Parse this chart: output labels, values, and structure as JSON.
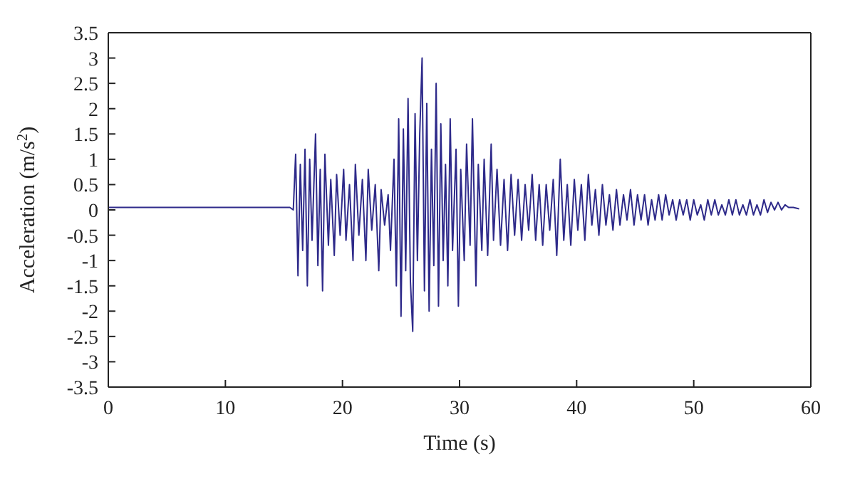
{
  "chart_data": {
    "type": "line",
    "xlabel": "Time (s)",
    "ylabel": "Acceleration (m/s$^{2}$)",
    "x": [
      0,
      15.5,
      15.8,
      16.0,
      16.2,
      16.4,
      16.6,
      16.8,
      17.0,
      17.2,
      17.4,
      17.7,
      17.9,
      18.1,
      18.3,
      18.5,
      18.8,
      19.0,
      19.3,
      19.5,
      19.8,
      20.1,
      20.3,
      20.6,
      20.9,
      21.1,
      21.4,
      21.7,
      22.0,
      22.2,
      22.5,
      22.8,
      23.1,
      23.3,
      23.6,
      23.9,
      24.1,
      24.4,
      24.6,
      24.8,
      25.0,
      25.2,
      25.4,
      25.6,
      25.8,
      26.0,
      26.2,
      26.4,
      26.6,
      26.8,
      27.0,
      27.2,
      27.4,
      27.6,
      27.8,
      28.0,
      28.2,
      28.4,
      28.6,
      28.8,
      29.0,
      29.2,
      29.4,
      29.7,
      29.9,
      30.1,
      30.4,
      30.6,
      30.9,
      31.1,
      31.4,
      31.6,
      31.9,
      32.1,
      32.4,
      32.7,
      32.9,
      33.2,
      33.5,
      33.8,
      34.1,
      34.4,
      34.7,
      35.0,
      35.3,
      35.6,
      35.9,
      36.2,
      36.5,
      36.8,
      37.1,
      37.4,
      37.7,
      38.0,
      38.3,
      38.6,
      38.9,
      39.2,
      39.5,
      39.8,
      40.1,
      40.4,
      40.7,
      41.0,
      41.3,
      41.6,
      41.9,
      42.2,
      42.5,
      42.8,
      43.1,
      43.4,
      43.7,
      44.0,
      44.3,
      44.6,
      44.9,
      45.2,
      45.5,
      45.8,
      46.1,
      46.4,
      46.7,
      47.0,
      47.3,
      47.6,
      47.9,
      48.2,
      48.5,
      48.8,
      49.1,
      49.4,
      49.7,
      50.0,
      50.3,
      50.6,
      50.9,
      51.2,
      51.5,
      51.8,
      52.1,
      52.4,
      52.7,
      53.0,
      53.3,
      53.6,
      53.9,
      54.2,
      54.5,
      54.8,
      55.1,
      55.4,
      55.7,
      56.0,
      56.3,
      56.6,
      56.9,
      57.2,
      57.5,
      57.8,
      58.1,
      58.5,
      59
    ],
    "series": [
      {
        "color": "#2e2a8a",
        "values": [
          0.05,
          0.05,
          0.0,
          1.1,
          -1.3,
          0.9,
          -0.8,
          1.2,
          -1.5,
          1.0,
          -0.6,
          1.5,
          -1.1,
          0.8,
          -1.6,
          1.1,
          -0.7,
          0.6,
          -0.9,
          0.7,
          -0.5,
          0.8,
          -0.6,
          0.5,
          -1.0,
          0.9,
          -0.5,
          0.6,
          -1.0,
          0.8,
          -0.4,
          0.5,
          -1.2,
          0.4,
          -0.3,
          0.3,
          -0.8,
          1.0,
          -1.5,
          1.8,
          -2.1,
          1.6,
          -1.2,
          2.2,
          -1.4,
          -2.4,
          1.9,
          -1.0,
          1.5,
          3.0,
          -1.6,
          2.1,
          -2.0,
          1.2,
          -1.1,
          2.5,
          -1.9,
          1.7,
          -1.0,
          0.9,
          -1.5,
          1.8,
          -0.8,
          1.2,
          -1.9,
          0.8,
          -1.0,
          1.3,
          -0.7,
          1.8,
          -1.5,
          0.9,
          -0.8,
          1.0,
          -0.9,
          1.3,
          -0.6,
          0.8,
          -0.7,
          0.6,
          -0.8,
          0.7,
          -0.5,
          0.6,
          -0.6,
          0.5,
          -0.4,
          0.7,
          -0.6,
          0.5,
          -0.7,
          0.5,
          -0.4,
          0.6,
          -0.9,
          1.0,
          -0.6,
          0.5,
          -0.7,
          0.6,
          -0.4,
          0.5,
          -0.6,
          0.7,
          -0.3,
          0.4,
          -0.5,
          0.5,
          -0.3,
          0.3,
          -0.4,
          0.4,
          -0.3,
          0.3,
          -0.2,
          0.4,
          -0.3,
          0.3,
          -0.2,
          0.3,
          -0.3,
          0.2,
          -0.2,
          0.3,
          -0.2,
          0.3,
          -0.1,
          0.2,
          -0.2,
          0.2,
          -0.1,
          0.2,
          -0.2,
          0.2,
          -0.1,
          0.1,
          -0.2,
          0.2,
          -0.1,
          0.2,
          -0.1,
          0.1,
          -0.1,
          0.2,
          -0.1,
          0.2,
          -0.1,
          0.1,
          -0.1,
          0.2,
          -0.1,
          0.1,
          -0.1,
          0.2,
          -0.05,
          0.15,
          0,
          0.15,
          0,
          0.1,
          0.05,
          0.05,
          0.02
        ]
      }
    ],
    "xlim": [
      0,
      60
    ],
    "xticks": [
      0,
      10,
      20,
      30,
      40,
      50,
      60
    ],
    "ylim": [
      -3.5,
      3.5
    ],
    "yticks": [
      -3.5,
      -3,
      -2.5,
      -2,
      -1.5,
      -1,
      -0.5,
      0,
      0.5,
      1,
      1.5,
      2,
      2.5,
      3,
      3.5
    ],
    "grid": false,
    "legend": false,
    "marker": "none",
    "line_style": "solid"
  }
}
